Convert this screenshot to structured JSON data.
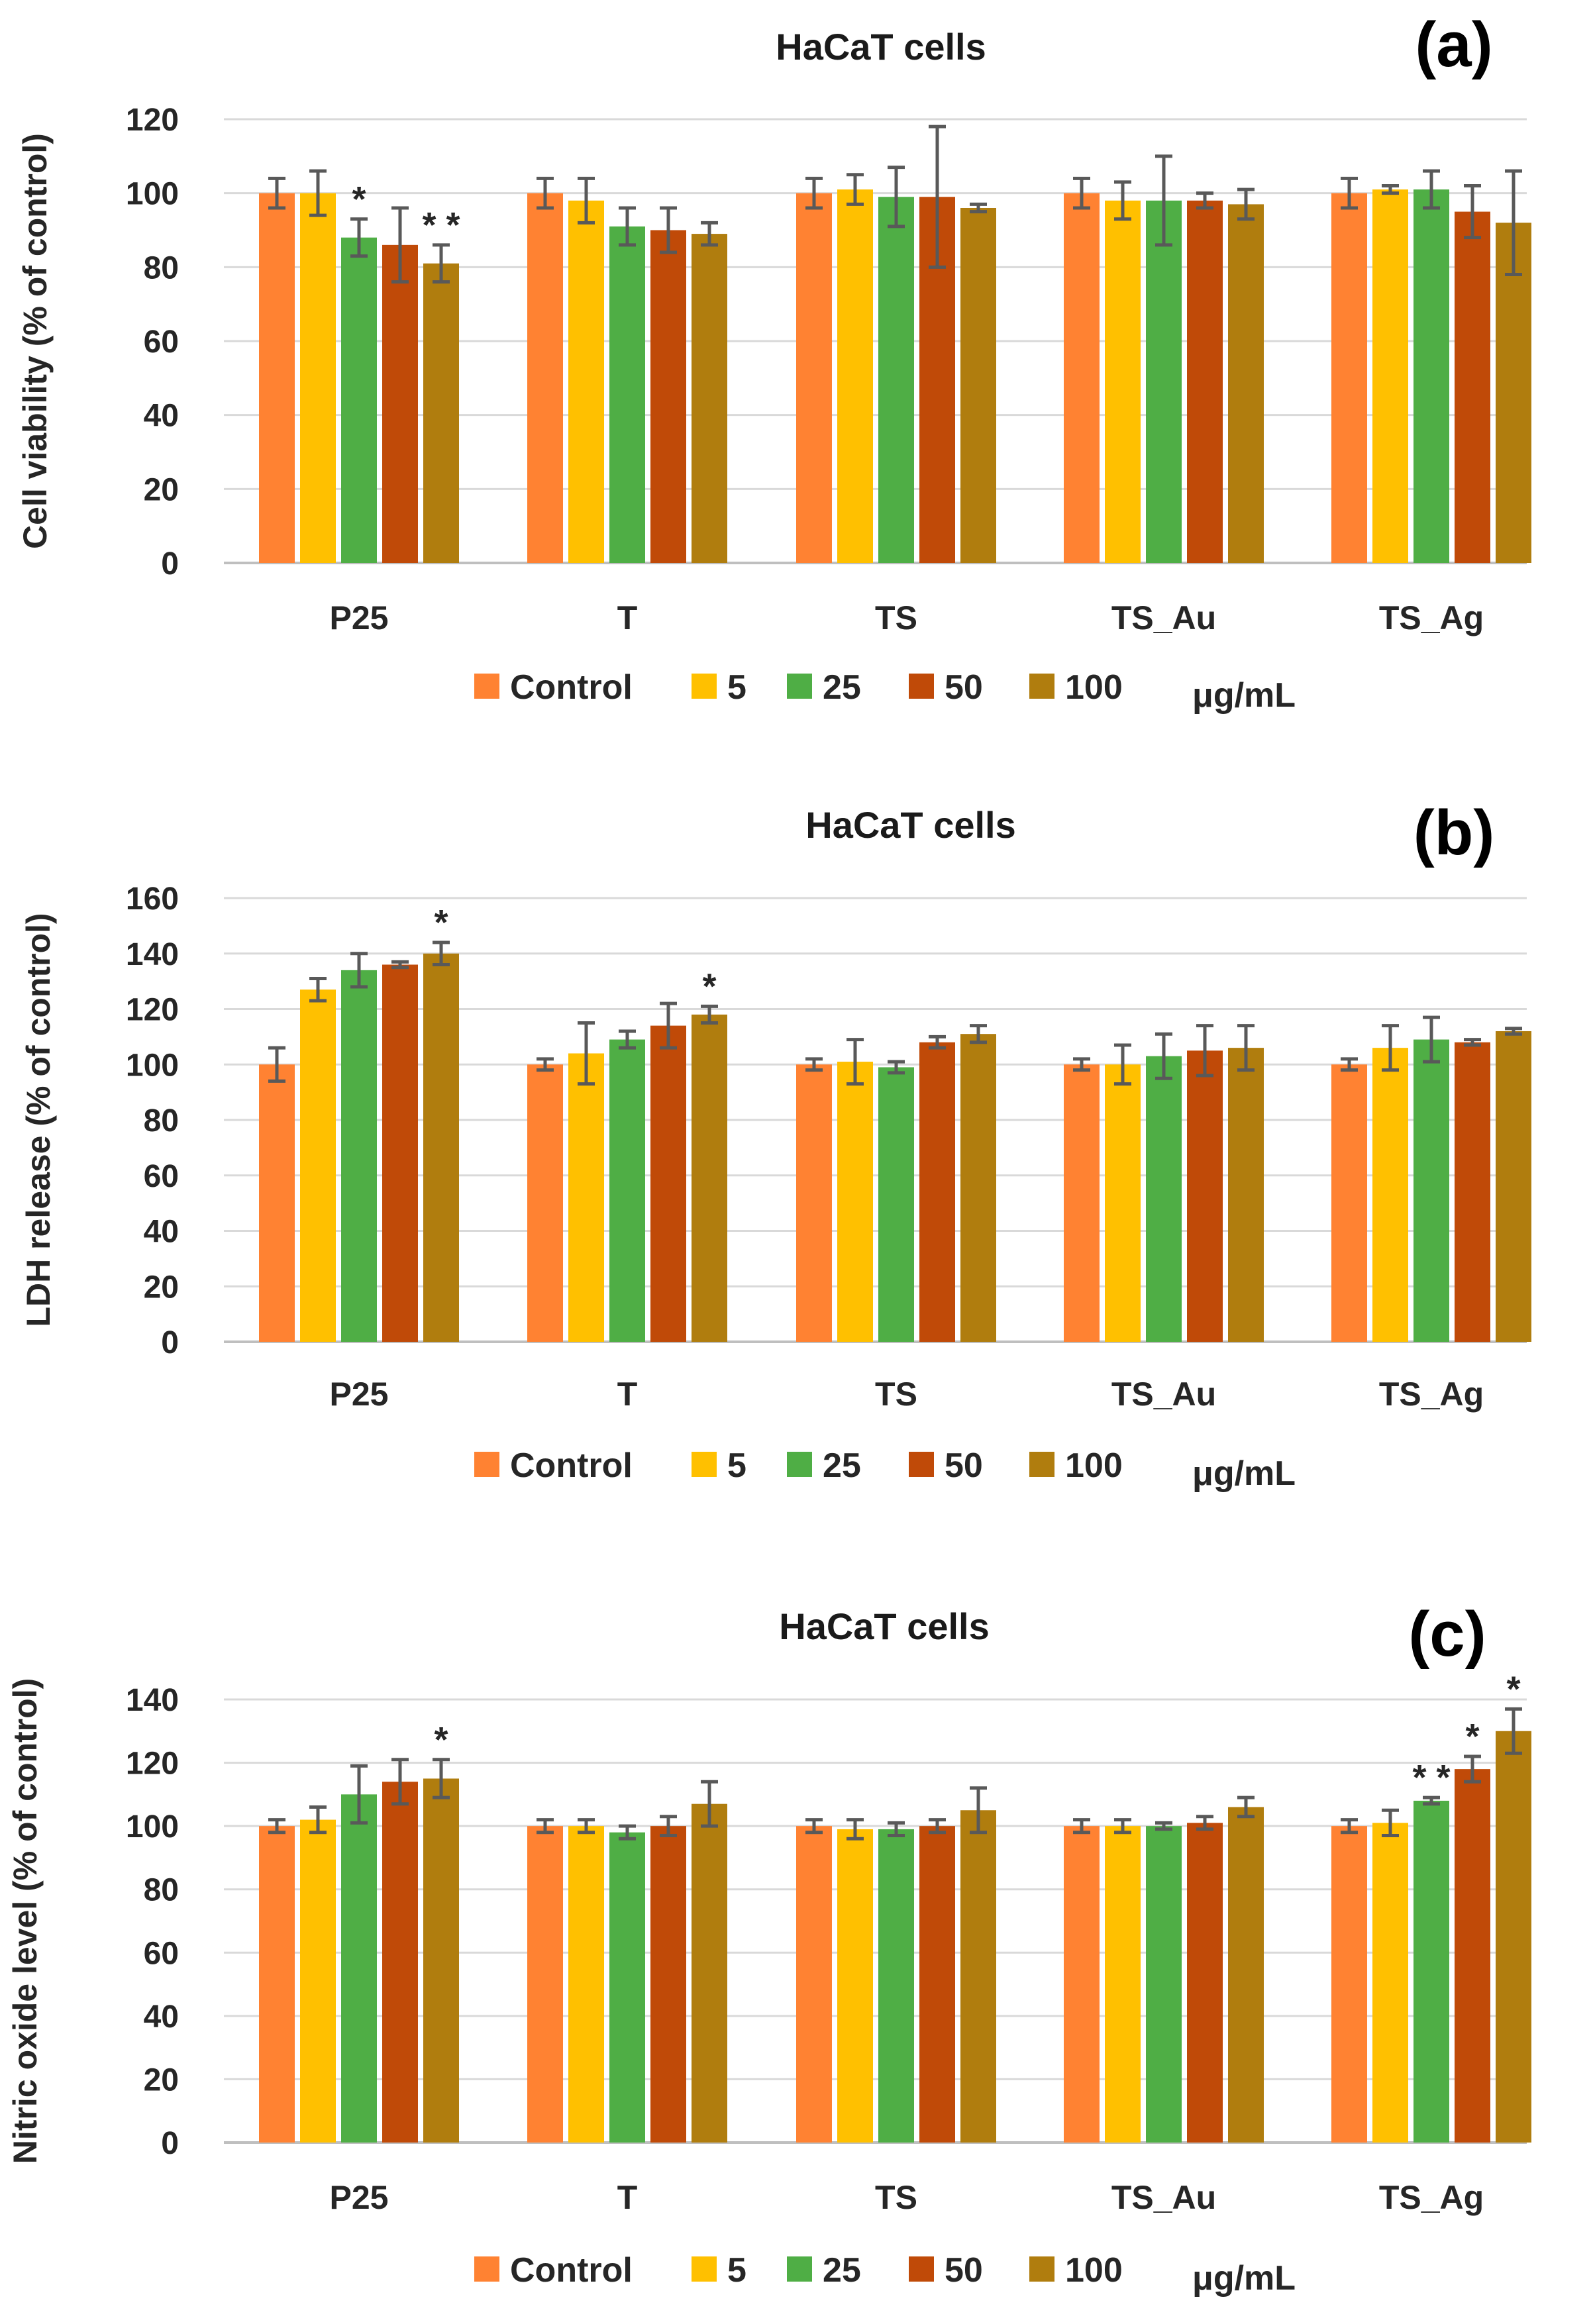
{
  "legend_unit": "μg/mL",
  "colors": {
    "Control": "#FF8232",
    "5": "#FFC000",
    "25": "#4FAE45",
    "50": "#C04A08",
    "100": "#B07D0E"
  },
  "chart_data": [
    {
      "type": "bar",
      "panel": "(a)",
      "title": "HaCaT cells",
      "ylabel": "Cell viability (% of control)",
      "xlabel": "",
      "ylim": [
        0,
        120
      ],
      "yticks": [
        0,
        20,
        40,
        60,
        80,
        100,
        120
      ],
      "categories": [
        "P25",
        "T",
        "TS",
        "TS_Au",
        "TS_Ag"
      ],
      "legend_unit": "μg/mL",
      "series": [
        {
          "name": "Control",
          "values": [
            100,
            100,
            100,
            100,
            100
          ],
          "errors": [
            4,
            4,
            4,
            4,
            4
          ],
          "significance": [
            "",
            "",
            "",
            "",
            ""
          ]
        },
        {
          "name": "5",
          "values": [
            100,
            98,
            101,
            98,
            101
          ],
          "errors": [
            6,
            6,
            4,
            5,
            1
          ],
          "significance": [
            "",
            "",
            "",
            "",
            ""
          ]
        },
        {
          "name": "25",
          "values": [
            88,
            91,
            99,
            98,
            101
          ],
          "errors": [
            5,
            5,
            8,
            12,
            5
          ],
          "significance": [
            "*",
            "",
            "",
            "",
            ""
          ]
        },
        {
          "name": "50",
          "values": [
            86,
            90,
            99,
            98,
            95
          ],
          "errors": [
            10,
            6,
            19,
            2,
            7
          ],
          "significance": [
            "",
            "",
            "",
            "",
            ""
          ]
        },
        {
          "name": "100",
          "values": [
            81,
            89,
            96,
            97,
            92
          ],
          "errors": [
            5,
            3,
            1,
            4,
            14
          ],
          "significance": [
            "**",
            "",
            "",
            "",
            ""
          ]
        }
      ]
    },
    {
      "type": "bar",
      "panel": "(b)",
      "title": "HaCaT cells",
      "ylabel": "LDH release (% of control)",
      "xlabel": "",
      "ylim": [
        0,
        160
      ],
      "yticks": [
        0,
        20,
        40,
        60,
        80,
        100,
        120,
        140,
        160
      ],
      "categories": [
        "P25",
        "T",
        "TS",
        "TS_Au",
        "TS_Ag"
      ],
      "legend_unit": "μg/mL",
      "series": [
        {
          "name": "Control",
          "values": [
            100,
            100,
            100,
            100,
            100
          ],
          "errors": [
            6,
            2,
            2,
            2,
            2
          ],
          "significance": [
            "",
            "",
            "",
            "",
            ""
          ]
        },
        {
          "name": "5",
          "values": [
            127,
            104,
            101,
            100,
            106
          ],
          "errors": [
            4,
            11,
            8,
            7,
            8
          ],
          "significance": [
            "",
            "",
            "",
            "",
            ""
          ]
        },
        {
          "name": "25",
          "values": [
            134,
            109,
            99,
            103,
            109
          ],
          "errors": [
            6,
            3,
            2,
            8,
            8
          ],
          "significance": [
            "",
            "",
            "",
            "",
            ""
          ]
        },
        {
          "name": "50",
          "values": [
            136,
            114,
            108,
            105,
            108
          ],
          "errors": [
            1,
            8,
            2,
            9,
            1
          ],
          "significance": [
            "",
            "",
            "",
            "",
            ""
          ]
        },
        {
          "name": "100",
          "values": [
            140,
            118,
            111,
            106,
            112
          ],
          "errors": [
            4,
            3,
            3,
            8,
            1
          ],
          "significance": [
            "*",
            "*",
            "",
            "",
            ""
          ]
        }
      ]
    },
    {
      "type": "bar",
      "panel": "(c)",
      "title": "HaCaT cells",
      "ylabel": "Nitric oxide level (% of control)",
      "xlabel": "",
      "ylim": [
        0,
        140
      ],
      "yticks": [
        0,
        20,
        40,
        60,
        80,
        100,
        120,
        140
      ],
      "categories": [
        "P25",
        "T",
        "TS",
        "TS_Au",
        "TS_Ag"
      ],
      "legend_unit": "μg/mL",
      "series": [
        {
          "name": "Control",
          "values": [
            100,
            100,
            100,
            100,
            100
          ],
          "errors": [
            2,
            2,
            2,
            2,
            2
          ],
          "significance": [
            "",
            "",
            "",
            "",
            ""
          ]
        },
        {
          "name": "5",
          "values": [
            102,
            100,
            99,
            100,
            101
          ],
          "errors": [
            4,
            2,
            3,
            2,
            4
          ],
          "significance": [
            "",
            "",
            "",
            "",
            ""
          ]
        },
        {
          "name": "25",
          "values": [
            110,
            98,
            99,
            100,
            108
          ],
          "errors": [
            9,
            2,
            2,
            1,
            1
          ],
          "significance": [
            "",
            "",
            "",
            "",
            "**"
          ]
        },
        {
          "name": "50",
          "values": [
            114,
            100,
            100,
            101,
            118
          ],
          "errors": [
            7,
            3,
            2,
            2,
            4
          ],
          "significance": [
            "",
            "",
            "",
            "",
            "*"
          ]
        },
        {
          "name": "100",
          "values": [
            115,
            107,
            105,
            106,
            130
          ],
          "errors": [
            6,
            7,
            7,
            3,
            7
          ],
          "significance": [
            "*",
            "",
            "",
            "",
            "*"
          ]
        }
      ]
    }
  ]
}
